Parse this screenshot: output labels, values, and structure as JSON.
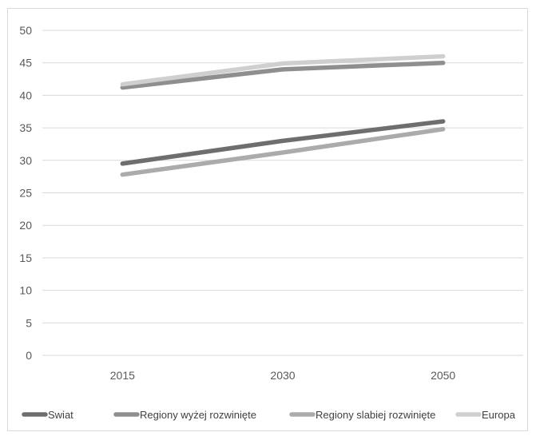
{
  "chart_data": {
    "type": "line",
    "title": "",
    "xlabel": "",
    "ylabel": "",
    "categories": [
      "2015",
      "2030",
      "2050"
    ],
    "ylim": [
      0,
      50
    ],
    "yticks": [
      0,
      5,
      10,
      15,
      20,
      25,
      30,
      35,
      40,
      45,
      50
    ],
    "grid": true,
    "legend_position": "bottom",
    "series": [
      {
        "name": "Swiat",
        "values": [
          29.5,
          33.0,
          36.0
        ],
        "color": "#6e6e6e"
      },
      {
        "name": "Regiony wyżej rozwinięte",
        "values": [
          41.2,
          44.0,
          45.0
        ],
        "color": "#8f8f8f"
      },
      {
        "name": "Regiony slabiej rozwinięte",
        "values": [
          27.8,
          31.2,
          34.8
        ],
        "color": "#ababab"
      },
      {
        "name": "Europa",
        "values": [
          41.7,
          44.9,
          46.0
        ],
        "color": "#cfcfcf"
      }
    ]
  }
}
